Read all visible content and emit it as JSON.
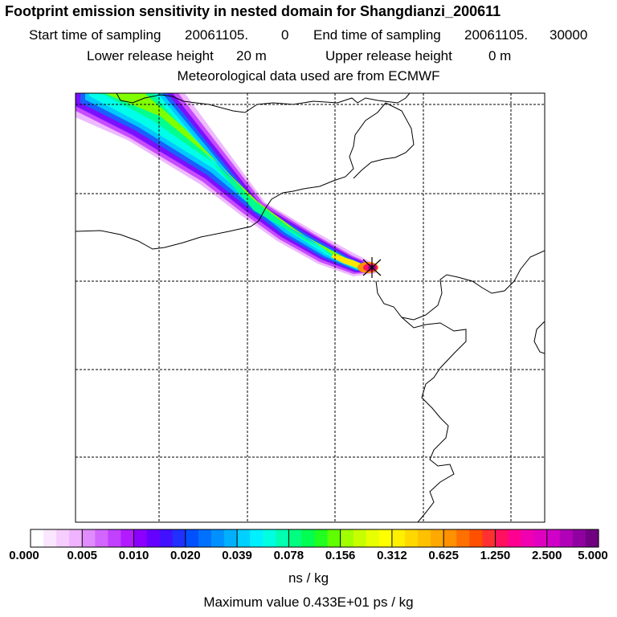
{
  "header": {
    "title": "Footprint emission sensitivity in nested domain for Shangdianzi_200611",
    "start_label": "Start time of sampling",
    "start_date": "20061105.",
    "start_hour": "0",
    "end_label": "End time of sampling",
    "end_date": "20061105.",
    "end_hour": "30000",
    "lower_label": "Lower release height",
    "lower_value": "20 m",
    "upper_label": "Upper release height",
    "upper_value": "0 m",
    "met_text": "Meteorological data used are from ECMWF"
  },
  "chart_data": {
    "type": "heatmap",
    "title": "Footprint emission sensitivity in nested domain for Shangdianzi_200611",
    "grid": true,
    "colorbar": {
      "tick_labels": [
        "0.000",
        "0.005",
        "0.010",
        "0.020",
        "0.039",
        "0.078",
        "0.156",
        "0.312",
        "0.625",
        "1.250",
        "2.500",
        "5.000"
      ],
      "colors": [
        "#ffffff",
        "#fbe6ff",
        "#f6cdff",
        "#efb3ff",
        "#e08cff",
        "#d266ff",
        "#c240ff",
        "#b21bff",
        "#8c00ff",
        "#6600ff",
        "#4010ff",
        "#2030ff",
        "#0050ff",
        "#0070ff",
        "#0090ff",
        "#00b0ff",
        "#00d0ff",
        "#00f0ff",
        "#00ffe0",
        "#00ffb0",
        "#00ff80",
        "#00ff50",
        "#20ff20",
        "#60ff00",
        "#a0ff00",
        "#c8ff00",
        "#e8ff00",
        "#ffff00",
        "#fff000",
        "#ffd800",
        "#ffc000",
        "#ffa800",
        "#ff9000",
        "#ff7000",
        "#ff5000",
        "#ff3030",
        "#ff1060",
        "#ff0090",
        "#f000b0",
        "#e000c0",
        "#d000c8",
        "#b000b8",
        "#9000a0",
        "#700080"
      ],
      "units": "ns / kg"
    },
    "max_value_text": "Maximum value  0.433E+01 ps / kg",
    "receptor_marker": "star"
  }
}
